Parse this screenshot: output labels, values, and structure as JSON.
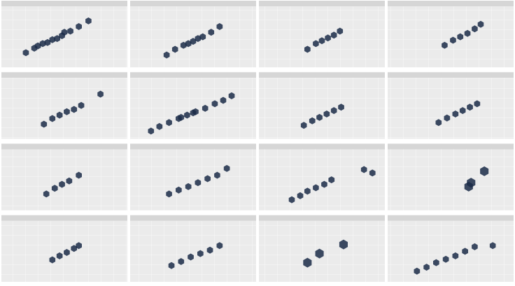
{
  "chart_data": [
    {
      "type": "scatter",
      "color": "#1b2c48",
      "xlim": [
        0,
        100
      ],
      "ylim": [
        0,
        100
      ],
      "x": [
        18,
        25,
        32,
        40,
        48,
        55,
        62,
        70,
        36,
        50,
        44,
        28
      ],
      "y": [
        22,
        30,
        38,
        45,
        52,
        60,
        68,
        78,
        40,
        58,
        47,
        34
      ]
    },
    {
      "type": "scatter",
      "color": "#1b2c48",
      "xlim": [
        0,
        100
      ],
      "ylim": [
        0,
        100
      ],
      "x": [
        28,
        35,
        42,
        50,
        58,
        65,
        72,
        46,
        54
      ],
      "y": [
        18,
        28,
        35,
        42,
        50,
        58,
        68,
        38,
        47
      ]
    },
    {
      "type": "scatter",
      "color": "#1b2c48",
      "xlim": [
        0,
        100
      ],
      "ylim": [
        0,
        100
      ],
      "x": [
        38,
        45,
        50,
        55,
        60,
        65
      ],
      "y": [
        28,
        38,
        43,
        48,
        53,
        60
      ]
    },
    {
      "type": "scatter",
      "color": "#1b2c48",
      "xlim": [
        0,
        100
      ],
      "ylim": [
        0,
        100
      ],
      "x": [
        45,
        52,
        58,
        64,
        70,
        75
      ],
      "y": [
        35,
        44,
        50,
        56,
        64,
        72
      ]
    },
    {
      "type": "scatter",
      "color": "#1b2c48",
      "xlim": [
        0,
        100
      ],
      "ylim": [
        0,
        100
      ],
      "x": [
        33,
        40,
        46,
        52,
        58,
        64,
        80
      ],
      "y": [
        22,
        32,
        38,
        44,
        48,
        55,
        75
      ]
    },
    {
      "type": "scatter",
      "color": "#1b2c48",
      "xlim": [
        0,
        100
      ],
      "ylim": [
        0,
        100
      ],
      "x": [
        15,
        22,
        30,
        38,
        45,
        52,
        60,
        68,
        75,
        82,
        40,
        50
      ],
      "y": [
        10,
        18,
        25,
        32,
        38,
        44,
        50,
        58,
        64,
        72,
        34,
        42
      ]
    },
    {
      "type": "scatter",
      "color": "#1b2c48",
      "xlim": [
        0,
        100
      ],
      "ylim": [
        0,
        100
      ],
      "x": [
        35,
        42,
        48,
        54,
        60,
        66
      ],
      "y": [
        20,
        28,
        34,
        40,
        46,
        52
      ]
    },
    {
      "type": "scatter",
      "color": "#1b2c48",
      "xlim": [
        0,
        100
      ],
      "ylim": [
        0,
        100
      ],
      "x": [
        40,
        47,
        54,
        60,
        66,
        72
      ],
      "y": [
        25,
        33,
        40,
        46,
        52,
        58
      ]
    },
    {
      "type": "scatter",
      "color": "#1b2c48",
      "xlim": [
        0,
        100
      ],
      "ylim": [
        0,
        100
      ],
      "x": [
        35,
        42,
        48,
        54,
        62
      ],
      "y": [
        25,
        35,
        42,
        48,
        58
      ]
    },
    {
      "type": "scatter",
      "color": "#1b2c48",
      "xlim": [
        0,
        100
      ],
      "ylim": [
        0,
        100
      ],
      "x": [
        30,
        38,
        46,
        54,
        62,
        70,
        78
      ],
      "y": [
        25,
        32,
        38,
        45,
        52,
        58,
        70
      ]
    },
    {
      "type": "scatter",
      "color": "#1b2c48",
      "xlim": [
        0,
        100
      ],
      "ylim": [
        0,
        100
      ],
      "x": [
        25,
        32,
        38,
        45,
        52,
        58,
        85,
        92
      ],
      "y": [
        15,
        22,
        30,
        36,
        42,
        50,
        68,
        62
      ]
    },
    {
      "type": "scatter",
      "color": "#1b2c48",
      "xlim": [
        0,
        100
      ],
      "ylim": [
        0,
        100
      ],
      "x": [
        65,
        67,
        78
      ],
      "y": [
        38,
        45,
        65
      ]
    },
    {
      "type": "scatter",
      "color": "#1b2c48",
      "xlim": [
        0,
        100
      ],
      "ylim": [
        0,
        100
      ],
      "x": [
        40,
        46,
        52,
        58,
        62
      ],
      "y": [
        35,
        42,
        48,
        55,
        60
      ]
    },
    {
      "type": "scatter",
      "color": "#1b2c48",
      "xlim": [
        0,
        100
      ],
      "ylim": [
        0,
        100
      ],
      "x": [
        32,
        40,
        48,
        56,
        64,
        72
      ],
      "y": [
        25,
        32,
        40,
        46,
        52,
        60
      ]
    },
    {
      "type": "scatter",
      "color": "#1b2c48",
      "xlim": [
        0,
        100
      ],
      "ylim": [
        0,
        100
      ],
      "x": [
        38,
        48,
        68
      ],
      "y": [
        30,
        46,
        62
      ]
    },
    {
      "type": "scatter",
      "color": "#1b2c48",
      "xlim": [
        0,
        100
      ],
      "ylim": [
        0,
        100
      ],
      "x": [
        22,
        30,
        38,
        46,
        54,
        62,
        70,
        85
      ],
      "y": [
        15,
        22,
        30,
        36,
        42,
        50,
        58,
        60
      ]
    }
  ]
}
